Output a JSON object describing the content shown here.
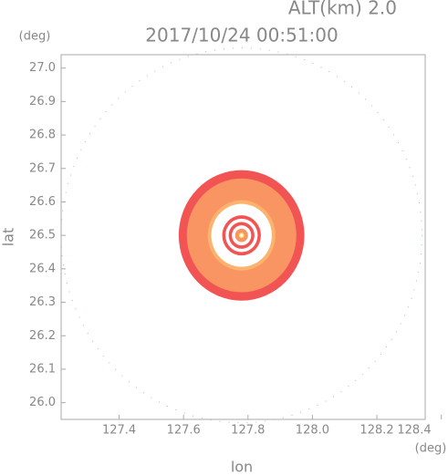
{
  "chart_data": {
    "type": "radar_rings",
    "title": "2017/10/24 00:51:00",
    "subtitle": "ALT(km) 2.0",
    "x_label": "lon",
    "y_label": "lat",
    "x_unit": "(deg)",
    "y_unit": "(deg)",
    "xlim": [
      127.22,
      128.35
    ],
    "ylim": [
      25.95,
      27.04
    ],
    "xticks": [
      127.4,
      127.6,
      127.8,
      {
        "value": 128.0,
        "label": "128.0"
      },
      128.2,
      128.4
    ],
    "yticks": [
      {
        "value": 26.0,
        "label": "26.0"
      },
      26.1,
      26.2,
      26.3,
      26.4,
      26.5,
      26.6,
      26.7,
      26.8,
      26.9,
      {
        "value": 27.0,
        "label": "27.0"
      }
    ],
    "center": [
      127.78,
      26.5
    ],
    "range_radius": 0.56,
    "rings": [
      {
        "radius": 0.195,
        "color": "#f25454"
      },
      {
        "radius": 0.17,
        "color": "#f99463"
      },
      {
        "radius": 0.105,
        "color": "#fbb36e"
      },
      {
        "radius": 0.094,
        "color": "#ffffff"
      },
      {
        "radius": 0.06,
        "color": "#f25454"
      },
      {
        "radius": 0.05,
        "color": "#ffffff"
      },
      {
        "radius": 0.04,
        "color": "#f25454"
      },
      {
        "radius": 0.03,
        "color": "#ffffff"
      },
      {
        "radius": 0.02,
        "color": "#f99463"
      },
      {
        "radius": 0.008,
        "color": "#ffe070"
      }
    ]
  }
}
